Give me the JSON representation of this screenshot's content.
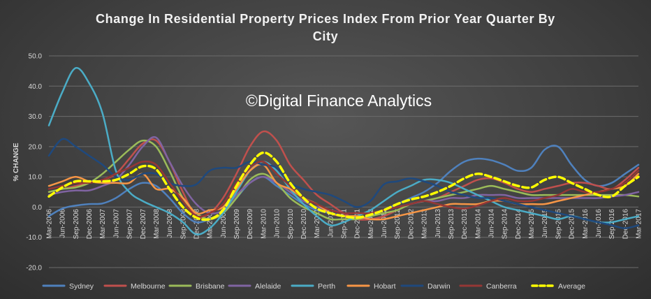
{
  "chart_data": {
    "type": "line",
    "title": "Change In Residential Property Prices Index From Prior Year Quarter By City",
    "watermark": "©Digital Finance Analytics",
    "ylabel": "% CHANGE",
    "xlabel": "",
    "ylim": [
      -20,
      50
    ],
    "yticks": [
      "50.0",
      "40.0",
      "30.0",
      "20.0",
      "10.0",
      "0.0",
      "-10.0",
      "-20.0"
    ],
    "grid": true,
    "legend": "bottom",
    "categories": [
      "Mar-2006",
      "Jun-2006",
      "Sep-2006",
      "Dec-2006",
      "Mar-2007",
      "Jun-2007",
      "Sep-2007",
      "Dec-2007",
      "Mar-2008",
      "Jun-2008",
      "Sep-2008",
      "Dec-2008",
      "Mar-2009",
      "Jun-2009",
      "Sep-2009",
      "Dec-2009",
      "Mar-2010",
      "Jun-2010",
      "Sep-2010",
      "Dec-2010",
      "Mar-2011",
      "Jun-2011",
      "Sep-2011",
      "Dec-2011",
      "Mar-2012",
      "Jun-2012",
      "Sep-2012",
      "Dec-2012",
      "Mar-2013",
      "Jun-2013",
      "Sep-2013",
      "Dec-2013",
      "Mar-2014",
      "Jun-2014",
      "Sep-2014",
      "Dec-2014",
      "Mar-2015",
      "Jun-2015",
      "Sep-2015",
      "Dec-2015",
      "Mar-2016",
      "Jun-2016",
      "Sep-2016",
      "Dec-2016",
      "Mar-2017"
    ],
    "series": [
      {
        "name": "Sydney",
        "color": "#4f81bd",
        "width": 2.5,
        "dash": "",
        "values": [
          -3,
          -0.5,
          0.5,
          1,
          1.2,
          3,
          6,
          8,
          7,
          3,
          -2,
          -5,
          -4,
          -2,
          3,
          8,
          10,
          7,
          4,
          1,
          -1,
          -2,
          -3,
          -4,
          -3,
          -1,
          1,
          3,
          5,
          8,
          12,
          15,
          16,
          15.5,
          14,
          12,
          13,
          19,
          20,
          14,
          9,
          7,
          8,
          11,
          14
        ]
      },
      {
        "name": "Melbourne",
        "color": "#c0504d",
        "width": 2.5,
        "dash": "",
        "values": [
          5,
          6,
          7,
          8,
          9,
          11,
          16,
          21,
          22,
          15,
          5,
          -3,
          -2,
          3,
          11,
          20,
          25,
          22,
          14,
          9,
          4,
          1,
          -2,
          -4,
          -4,
          -3,
          -1,
          1,
          2,
          3,
          5,
          7,
          9,
          9.5,
          8,
          6,
          5,
          6,
          7,
          8,
          8,
          7,
          6,
          9,
          13
        ]
      },
      {
        "name": "Brisbane",
        "color": "#9bbb59",
        "width": 2.5,
        "dash": "",
        "values": [
          5,
          6,
          6.5,
          8,
          11,
          15,
          19,
          22,
          20,
          12,
          3,
          -2,
          -4,
          -2,
          3,
          9,
          11,
          8,
          3,
          0,
          -2,
          -4,
          -4,
          -4,
          -3,
          -2,
          -1,
          1,
          2,
          3,
          4,
          5,
          6,
          7,
          6,
          5,
          4,
          4,
          4,
          4,
          4,
          4,
          4,
          4,
          3.5
        ]
      },
      {
        "name": "Alelaide",
        "color": "#8064a2",
        "width": 2.5,
        "dash": "",
        "values": [
          4,
          5,
          5.5,
          5.5,
          7,
          9,
          14,
          20,
          23,
          15,
          7,
          1,
          -2,
          -1,
          4,
          8,
          10,
          8,
          5,
          2,
          0,
          -1,
          -2,
          -2,
          -2,
          -1,
          0,
          1,
          2,
          2,
          3,
          3,
          4,
          4,
          4,
          3,
          3,
          3,
          3,
          3,
          3,
          3,
          3.5,
          4,
          5
        ]
      },
      {
        "name": "Perth",
        "color": "#4bacc6",
        "width": 2.5,
        "dash": "",
        "values": [
          27,
          38,
          46,
          41,
          31,
          12,
          5,
          2,
          0,
          -2,
          -5,
          -9,
          -7,
          -2,
          5,
          12,
          15,
          12,
          6,
          1,
          -3,
          -6,
          -5,
          -3,
          -1,
          2,
          5,
          7,
          9,
          9,
          8,
          6,
          4,
          2,
          0,
          -1,
          -2,
          -3,
          -4,
          -3,
          -4,
          -5,
          -5,
          -4,
          -3
        ]
      },
      {
        "name": "Hobart",
        "color": "#f79646",
        "width": 2.5,
        "dash": "",
        "values": [
          7,
          8.5,
          10,
          8.5,
          8,
          8,
          8,
          11,
          6,
          6,
          3,
          -2,
          -1,
          0,
          6,
          12,
          14,
          8,
          6,
          3,
          1,
          -2,
          -3,
          -3,
          -4,
          -4,
          -3,
          -2,
          -1,
          0,
          1,
          1,
          1,
          2,
          2,
          1,
          1,
          1,
          2,
          3,
          4,
          5,
          6,
          7,
          11
        ]
      },
      {
        "name": "Darwin",
        "color": "#1f497d",
        "width": 2.5,
        "dash": "",
        "values": [
          17,
          22.5,
          20,
          17,
          14,
          10,
          9,
          11,
          11,
          8,
          7,
          7.5,
          12,
          13,
          13,
          15,
          14,
          13,
          8,
          6,
          5,
          4,
          2,
          0,
          2,
          7.5,
          8.5,
          9.5,
          8.5,
          7,
          5,
          4,
          3,
          3,
          2,
          1,
          0,
          -1,
          -2,
          -3,
          -4,
          -5,
          -6,
          -7,
          -6
        ]
      },
      {
        "name": "Canberra",
        "color": "#953735",
        "width": 2.5,
        "dash": "",
        "values": [
          6,
          7,
          8,
          8,
          9,
          11,
          13,
          15,
          14,
          8,
          2,
          -3,
          -2,
          1,
          8,
          13,
          15,
          11,
          7,
          3,
          1,
          -1,
          -2,
          -2,
          -2,
          -1,
          0,
          1,
          2,
          1,
          0,
          -0.5,
          0.5,
          2,
          3,
          2,
          2,
          3,
          4,
          6,
          5,
          5,
          6,
          8,
          12
        ]
      },
      {
        "name": "Average",
        "color": "#ffff00",
        "width": 3.5,
        "dash": "9 5",
        "values": [
          3.5,
          6.5,
          8.5,
          8.5,
          8.5,
          9,
          11,
          13.5,
          12.5,
          6,
          0,
          -3.5,
          -4,
          -1,
          7,
          14,
          18,
          15,
          8,
          3,
          -0.5,
          -2,
          -3,
          -3.5,
          -2.5,
          -1,
          1,
          2.5,
          3.5,
          5,
          7,
          9.5,
          11,
          10,
          8.5,
          7,
          6.5,
          9,
          10,
          8,
          6,
          4,
          3.5,
          7,
          10
        ]
      }
    ]
  }
}
